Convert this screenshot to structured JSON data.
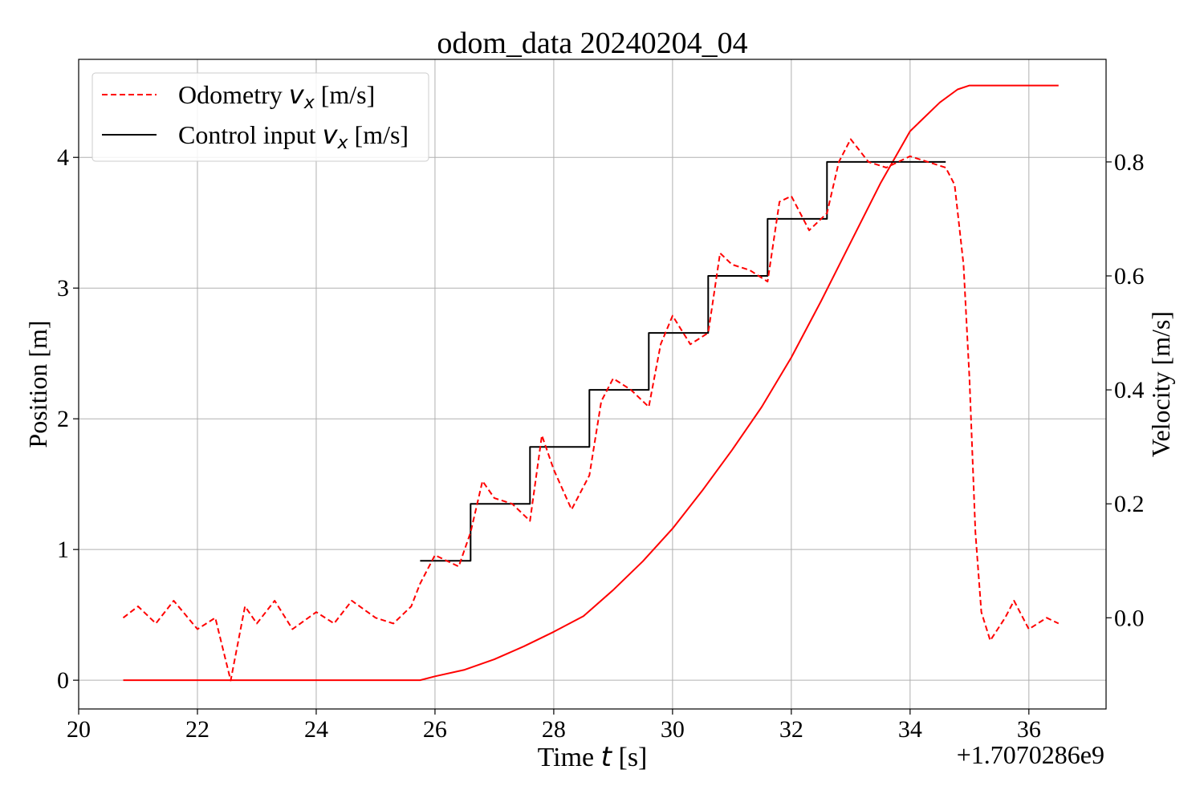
{
  "chart_data": {
    "type": "line",
    "title": "odom_data 20240204_04",
    "xlabel": "Time",
    "xlabel_var": "t",
    "xlabel_unit": "[s]",
    "x_offset_label": "+1.7070286e9",
    "ylabel": "Position [m]",
    "y2label": "Velocity [m/s]",
    "xlim": [
      20,
      37.3
    ],
    "ylim": [
      -0.22,
      4.75
    ],
    "y2lim": [
      -0.16,
      0.98
    ],
    "xticks": [
      "20",
      "22",
      "24",
      "26",
      "28",
      "30",
      "32",
      "34",
      "36"
    ],
    "yticks": [
      "0",
      "1",
      "2",
      "3",
      "4"
    ],
    "y2ticks": [
      "0.0",
      "0.2",
      "0.4",
      "0.6",
      "0.8"
    ],
    "grid": true,
    "legend": {
      "placement": "upper-left",
      "entries": [
        {
          "label": "Odometry",
          "var": "v",
          "sub": "x",
          "unit": "[m/s]",
          "style": "dashed",
          "color": "#ff0000"
        },
        {
          "label": "Control input",
          "var": "v",
          "sub": "x",
          "unit": "[m/s]",
          "style": "solid",
          "color": "#000000"
        }
      ]
    },
    "series": [
      {
        "axis": "left",
        "style": "solid",
        "color": "#ff0000",
        "x": [
          20.75,
          25.75,
          26.0,
          26.5,
          27.0,
          27.5,
          28.0,
          28.5,
          29.0,
          29.5,
          30.0,
          30.5,
          31.0,
          31.5,
          32.0,
          32.5,
          33.0,
          33.5,
          34.0,
          34.5,
          34.8,
          35.0,
          35.2,
          36.5
        ],
        "y": [
          0.0,
          0.0,
          0.03,
          0.08,
          0.16,
          0.26,
          0.37,
          0.49,
          0.69,
          0.91,
          1.16,
          1.45,
          1.76,
          2.09,
          2.47,
          2.9,
          3.35,
          3.8,
          4.2,
          4.42,
          4.52,
          4.55,
          4.55,
          4.55
        ]
      },
      {
        "axis": "right",
        "style": "step",
        "color": "#000000",
        "x": [
          25.75,
          26.6,
          26.6,
          27.6,
          27.6,
          28.6,
          28.6,
          29.6,
          29.6,
          30.6,
          30.6,
          31.6,
          31.6,
          32.6,
          32.6,
          34.6
        ],
        "y": [
          0.1,
          0.1,
          0.2,
          0.2,
          0.3,
          0.3,
          0.4,
          0.4,
          0.5,
          0.5,
          0.6,
          0.6,
          0.7,
          0.7,
          0.8,
          0.8
        ]
      },
      {
        "axis": "right",
        "style": "dashed",
        "color": "#ff0000",
        "x": [
          20.75,
          21.0,
          21.3,
          21.6,
          22.0,
          22.3,
          22.56,
          22.8,
          23.0,
          23.3,
          23.6,
          24.0,
          24.3,
          24.6,
          25.0,
          25.3,
          25.6,
          25.75,
          26.0,
          26.2,
          26.4,
          26.6,
          26.8,
          27.0,
          27.3,
          27.6,
          27.8,
          28.0,
          28.3,
          28.6,
          28.8,
          29.0,
          29.3,
          29.6,
          29.8,
          30.0,
          30.3,
          30.6,
          30.8,
          31.0,
          31.3,
          31.6,
          31.8,
          32.0,
          32.3,
          32.6,
          32.8,
          33.0,
          33.3,
          33.6,
          34.0,
          34.3,
          34.6,
          34.75,
          34.9,
          35.0,
          35.1,
          35.2,
          35.35,
          35.6,
          35.75,
          36.0,
          36.3,
          36.5
        ],
        "y": [
          0.0,
          0.02,
          -0.01,
          0.03,
          -0.02,
          0.0,
          -0.11,
          0.02,
          -0.01,
          0.03,
          -0.02,
          0.01,
          -0.01,
          0.03,
          0.0,
          -0.01,
          0.02,
          0.06,
          0.11,
          0.1,
          0.09,
          0.15,
          0.24,
          0.21,
          0.2,
          0.17,
          0.32,
          0.26,
          0.19,
          0.25,
          0.38,
          0.42,
          0.4,
          0.37,
          0.48,
          0.53,
          0.48,
          0.5,
          0.64,
          0.62,
          0.61,
          0.59,
          0.73,
          0.74,
          0.68,
          0.71,
          0.8,
          0.84,
          0.8,
          0.79,
          0.81,
          0.8,
          0.79,
          0.76,
          0.62,
          0.42,
          0.15,
          0.01,
          -0.04,
          0.0,
          0.03,
          -0.02,
          0.0,
          -0.01
        ]
      }
    ]
  }
}
